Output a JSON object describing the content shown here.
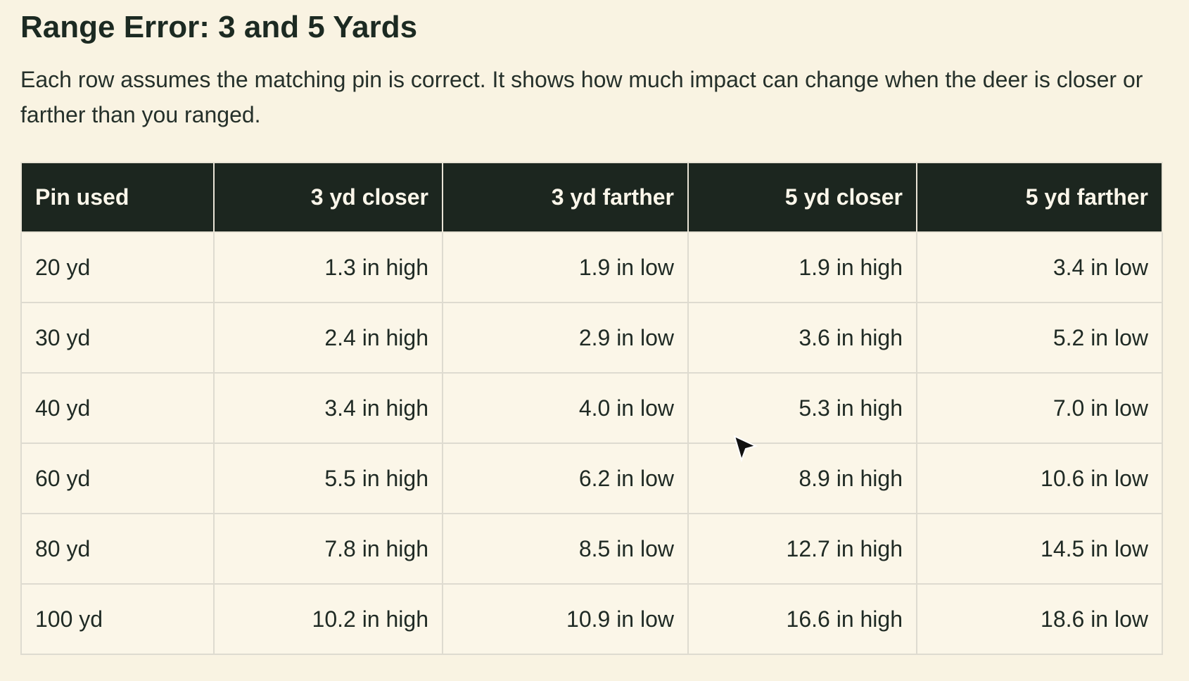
{
  "header": {
    "title": "Range Error: 3 and 5 Yards",
    "description": "Each row assumes the matching pin is correct. It shows how much impact can change when the deer is closer or farther than you ranged."
  },
  "table": {
    "columns": [
      "Pin used",
      "3 yd closer",
      "3 yd farther",
      "5 yd closer",
      "5 yd farther"
    ],
    "rows": [
      [
        "20 yd",
        "1.3 in high",
        "1.9 in low",
        "1.9 in high",
        "3.4 in low"
      ],
      [
        "30 yd",
        "2.4 in high",
        "2.9 in low",
        "3.6 in high",
        "5.2 in low"
      ],
      [
        "40 yd",
        "3.4 in high",
        "4.0 in low",
        "5.3 in high",
        "7.0 in low"
      ],
      [
        "60 yd",
        "5.5 in high",
        "6.2 in low",
        "8.9 in high",
        "10.6 in low"
      ],
      [
        "80 yd",
        "7.8 in high",
        "8.5 in low",
        "12.7 in high",
        "14.5 in low"
      ],
      [
        "100 yd",
        "10.2 in high",
        "10.9 in low",
        "16.6 in high",
        "18.6 in low"
      ]
    ]
  }
}
